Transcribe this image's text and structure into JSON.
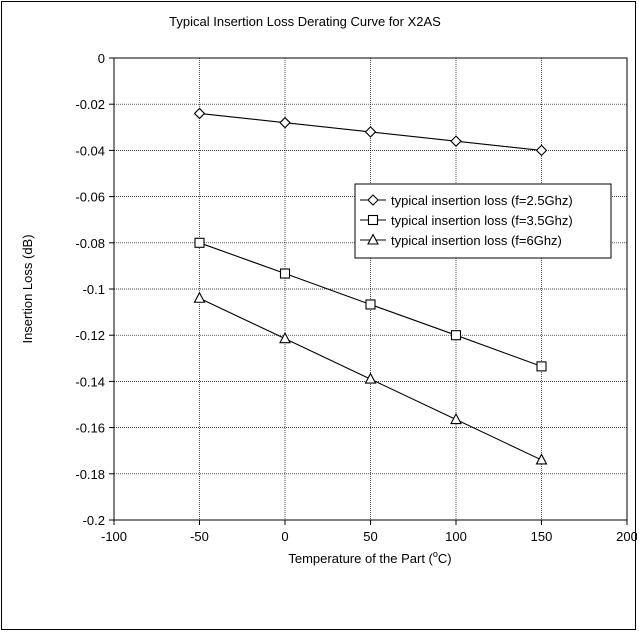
{
  "chart_data": {
    "type": "line",
    "title": "Typical Insertion Loss Derating Curve for X2AS",
    "xlabel_prefix": "Temperature of the Part (",
    "xlabel_sup": "o",
    "xlabel_suffix": "C)",
    "ylabel": "Insertion Loss (dB)",
    "xlim": [
      -100,
      200
    ],
    "ylim": [
      -0.2,
      0
    ],
    "x_ticks": [
      -100,
      -50,
      0,
      50,
      100,
      150,
      200
    ],
    "x_tick_labels": [
      "-100",
      "-50",
      "0",
      "50",
      "100",
      "150",
      "200"
    ],
    "y_ticks": [
      0,
      -0.02,
      -0.04,
      -0.06,
      -0.08,
      -0.1,
      -0.12,
      -0.14,
      -0.16,
      -0.18,
      -0.2
    ],
    "y_tick_labels": [
      "0",
      "-0.02",
      "-0.04",
      "-0.06",
      "-0.08",
      "-0.1",
      "-0.12",
      "-0.14",
      "-0.16",
      "-0.18",
      "-0.2"
    ],
    "grid": true,
    "legend_position": "right",
    "x": [
      -50,
      0,
      50,
      100,
      150
    ],
    "series": [
      {
        "name": "typical insertion loss (f=2.5Ghz)",
        "marker": "diamond",
        "values": [
          -0.024,
          -0.028,
          -0.032,
          -0.036,
          -0.04
        ]
      },
      {
        "name": "typical insertion loss (f=3.5Ghz)",
        "marker": "square",
        "values": [
          -0.08,
          -0.0933,
          -0.1067,
          -0.12,
          -0.1335
        ]
      },
      {
        "name": "typical insertion loss (f=6Ghz)",
        "marker": "triangle",
        "values": [
          -0.104,
          -0.1215,
          -0.139,
          -0.1565,
          -0.174
        ]
      }
    ],
    "line_color": "#000000",
    "background_color": "#ffffff"
  }
}
